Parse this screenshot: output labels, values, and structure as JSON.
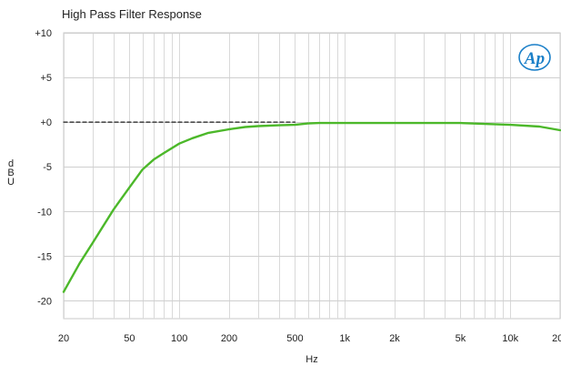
{
  "chart_data": {
    "type": "line",
    "title": "High Pass Filter Response",
    "xlabel": "Hz",
    "ylabel": "dBU",
    "x_scale": "log",
    "xlim": [
      20,
      20000
    ],
    "ylim": [
      -22,
      10
    ],
    "grid": true,
    "x_ticks": [
      {
        "value": 20,
        "label": "20"
      },
      {
        "value": 50,
        "label": "50"
      },
      {
        "value": 100,
        "label": "100"
      },
      {
        "value": 200,
        "label": "200"
      },
      {
        "value": 500,
        "label": "500"
      },
      {
        "value": 1000,
        "label": "1k"
      },
      {
        "value": 2000,
        "label": "2k"
      },
      {
        "value": 5000,
        "label": "5k"
      },
      {
        "value": 10000,
        "label": "10k"
      },
      {
        "value": 20000,
        "label": "20k"
      }
    ],
    "y_ticks": [
      {
        "value": 10,
        "label": "+10"
      },
      {
        "value": 5,
        "label": "+5"
      },
      {
        "value": 0,
        "label": "+0"
      },
      {
        "value": -5,
        "label": "-5"
      },
      {
        "value": -10,
        "label": "-10"
      },
      {
        "value": -15,
        "label": "-15"
      },
      {
        "value": -20,
        "label": "-20"
      }
    ],
    "series": [
      {
        "color": "#4cb82a",
        "x": [
          20,
          25,
          30,
          40,
          50,
          60,
          70,
          80,
          100,
          120,
          150,
          200,
          250,
          300,
          400,
          500,
          600,
          700,
          800,
          1000,
          2000,
          5000,
          7000,
          10000,
          15000,
          20000
        ],
        "y": [
          -19.0,
          -15.8,
          -13.5,
          -9.8,
          -7.3,
          -5.3,
          -4.2,
          -3.5,
          -2.4,
          -1.8,
          -1.2,
          -0.8,
          -0.55,
          -0.45,
          -0.35,
          -0.3,
          -0.15,
          -0.1,
          -0.1,
          -0.1,
          -0.1,
          -0.1,
          -0.2,
          -0.3,
          -0.5,
          -0.9
        ]
      },
      {
        "color": "#222222",
        "dashed": true,
        "x": [
          20,
          500
        ],
        "y": [
          0,
          0
        ]
      }
    ]
  },
  "logo": {
    "text": "Ap",
    "color": "#1a7fc8"
  }
}
